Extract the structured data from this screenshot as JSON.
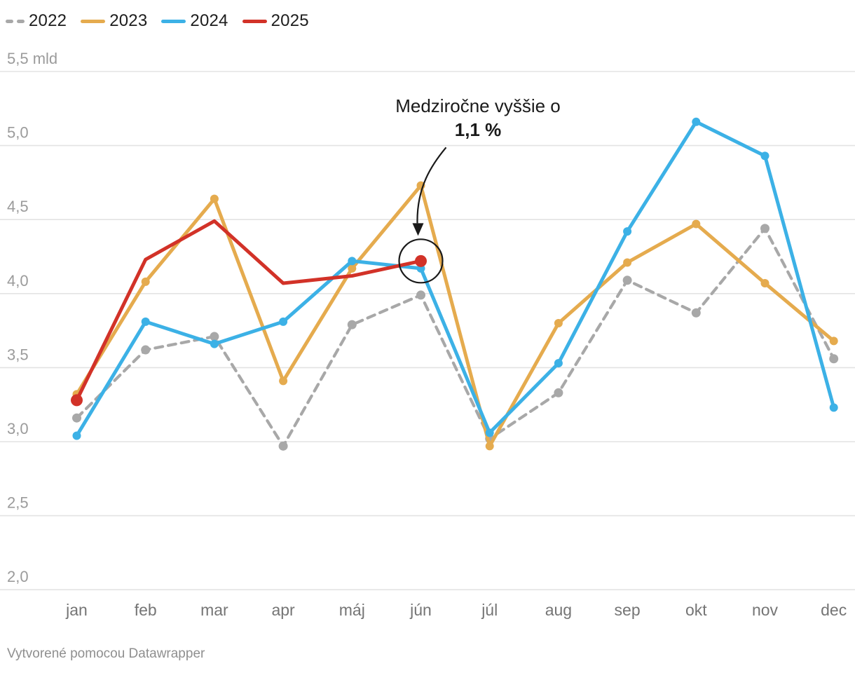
{
  "legend_note": "legend built from chart_data.series",
  "chart_data": {
    "type": "line",
    "title": "",
    "x_categories": [
      "jan",
      "feb",
      "mar",
      "apr",
      "máj",
      "jún",
      "júl",
      "aug",
      "sep",
      "okt",
      "nov",
      "dec"
    ],
    "y_ticks": [
      {
        "value": 5.5,
        "label": "5,5 mld"
      },
      {
        "value": 5.0,
        "label": "5,0"
      },
      {
        "value": 4.5,
        "label": "4,5"
      },
      {
        "value": 4.0,
        "label": "4,0"
      },
      {
        "value": 3.5,
        "label": "3,5"
      },
      {
        "value": 3.0,
        "label": "3,0"
      },
      {
        "value": 2.5,
        "label": "2,5"
      },
      {
        "value": 2.0,
        "label": "2,0"
      }
    ],
    "y_range": [
      2.0,
      5.5
    ],
    "grid": true,
    "legend_position": "top-left",
    "colors": {
      "grid": "#e3e3e3",
      "y_label": "#9b9b9b",
      "x_label": "#757575",
      "annotation": "#1a1a1a"
    },
    "series": [
      {
        "name": "2022",
        "color": "#a8a8a8",
        "dashed": true,
        "point_radius": 6.5,
        "values": [
          3.16,
          3.62,
          3.71,
          2.97,
          3.79,
          3.99,
          3.02,
          3.33,
          4.09,
          3.87,
          4.44,
          3.56
        ]
      },
      {
        "name": "2023",
        "color": "#e5ab4e",
        "dashed": false,
        "point_radius": 6,
        "values": [
          3.32,
          4.08,
          4.64,
          3.41,
          4.17,
          4.73,
          2.97,
          3.8,
          4.21,
          4.47,
          4.07,
          3.68
        ]
      },
      {
        "name": "2024",
        "color": "#3cb1e6",
        "dashed": false,
        "point_radius": 6,
        "values": [
          3.04,
          3.81,
          3.66,
          3.81,
          4.22,
          4.17,
          3.06,
          3.53,
          4.42,
          5.16,
          4.93,
          3.23
        ]
      },
      {
        "name": "2025",
        "color": "#d23228",
        "dashed": false,
        "point_radius": 8.5,
        "emphasized_points_only": [
          0,
          5
        ],
        "values": [
          3.28,
          4.23,
          4.49,
          4.07,
          4.12,
          4.22
        ]
      }
    ],
    "annotation": {
      "text_line1": "Medziročne vyššie o",
      "text_line2": "1,1 %",
      "target_series": "2025",
      "target_month": "jún",
      "target_value": 4.22
    }
  },
  "footer": {
    "credit": "Vytvorené pomocou Datawrapper"
  }
}
